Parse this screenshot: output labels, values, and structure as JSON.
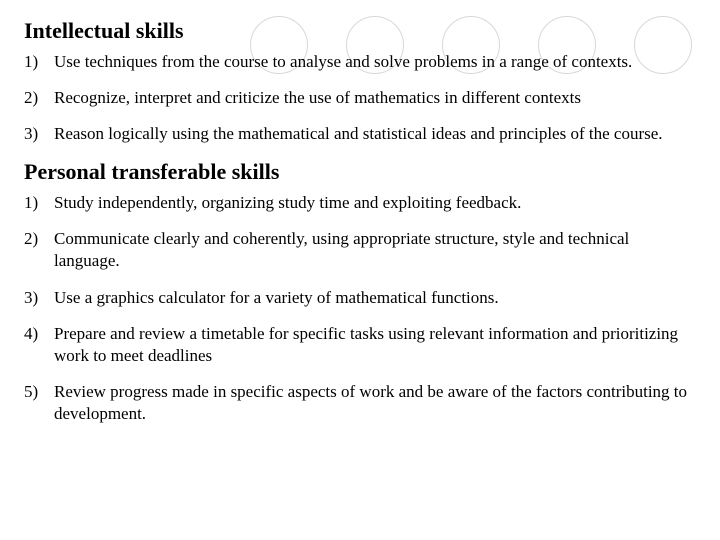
{
  "decor": {
    "circle_count": 5,
    "circle_border_color": "#d8d8d8"
  },
  "sections": [
    {
      "heading": "Intellectual skills",
      "heading_fontsize": 22,
      "items": [
        {
          "num": "1)",
          "text": "Use techniques from the course to analyse and solve problems in a range of contexts."
        },
        {
          "num": "2)",
          "text": " Recognize, interpret and criticize the use of mathematics in different contexts"
        },
        {
          "num": "3)",
          "text": " Reason logically using the mathematical and statistical ideas and principles of the course."
        }
      ]
    },
    {
      "heading": "Personal transferable skills",
      "heading_fontsize": 22,
      "items": [
        {
          "num": "1)",
          "text": "Study independently, organizing study time and exploiting feedback."
        },
        {
          "num": "2)",
          "text": " Communicate clearly and coherently, using appropriate structure, style and technical language."
        },
        {
          "num": "3)",
          "text": " Use a graphics calculator for a variety of mathematical functions."
        },
        {
          "num": "4)",
          "text": " Prepare and review a timetable for specific tasks using relevant information and prioritizing work to meet deadlines"
        },
        {
          "num": "5)",
          "text": " Review progress made in specific aspects of work and be aware of the factors contributing to development."
        }
      ]
    }
  ],
  "colors": {
    "background": "#ffffff",
    "text": "#000000"
  },
  "typography": {
    "font_family": "Times New Roman",
    "body_fontsize": 17,
    "heading_weight": "bold"
  }
}
